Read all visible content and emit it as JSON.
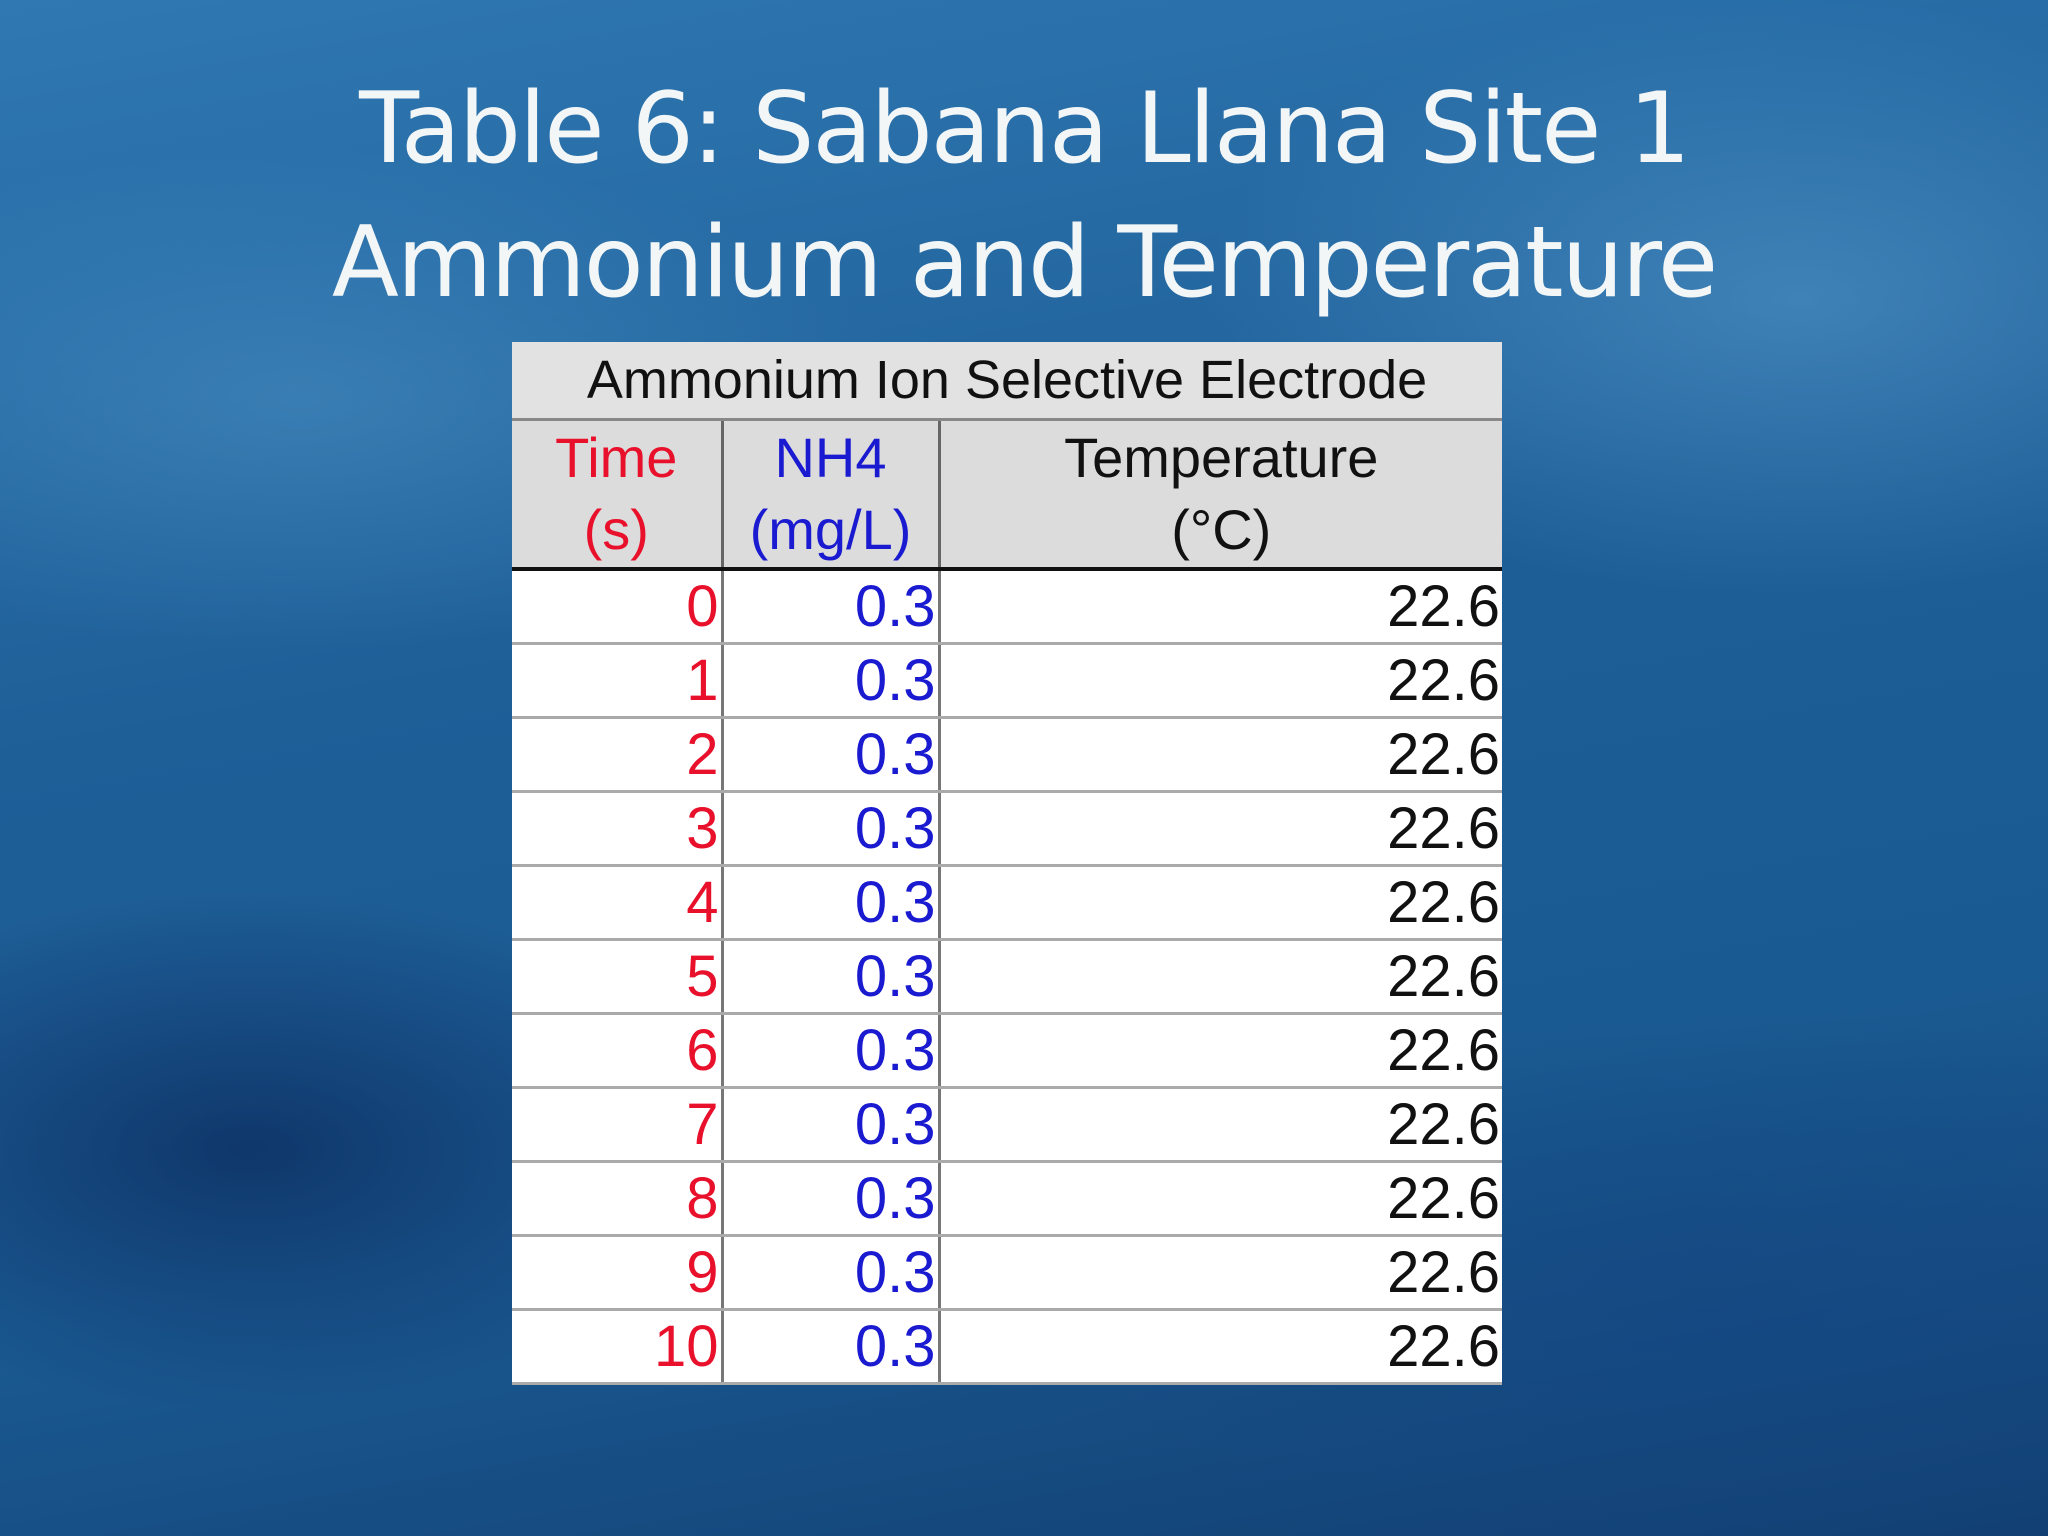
{
  "title": [
    "Table 6: Sabana Llana Site 1",
    "Ammonium and Temperature"
  ],
  "table": {
    "caption": "Ammonium Ion Selective Electrode",
    "headers": [
      [
        "Time",
        "(s)"
      ],
      [
        "NH4",
        "(mg/L)"
      ],
      [
        "Temperature",
        "(°C)"
      ]
    ],
    "rows": [
      [
        0,
        0.3,
        22.6
      ],
      [
        1,
        0.3,
        22.6
      ],
      [
        2,
        0.3,
        22.6
      ],
      [
        3,
        0.3,
        22.6
      ],
      [
        4,
        0.3,
        22.6
      ],
      [
        5,
        0.3,
        22.6
      ],
      [
        6,
        0.3,
        22.6
      ],
      [
        7,
        0.3,
        22.6
      ],
      [
        8,
        0.3,
        22.6
      ],
      [
        9,
        0.3,
        22.6
      ],
      [
        10,
        0.3,
        22.6
      ]
    ]
  }
}
